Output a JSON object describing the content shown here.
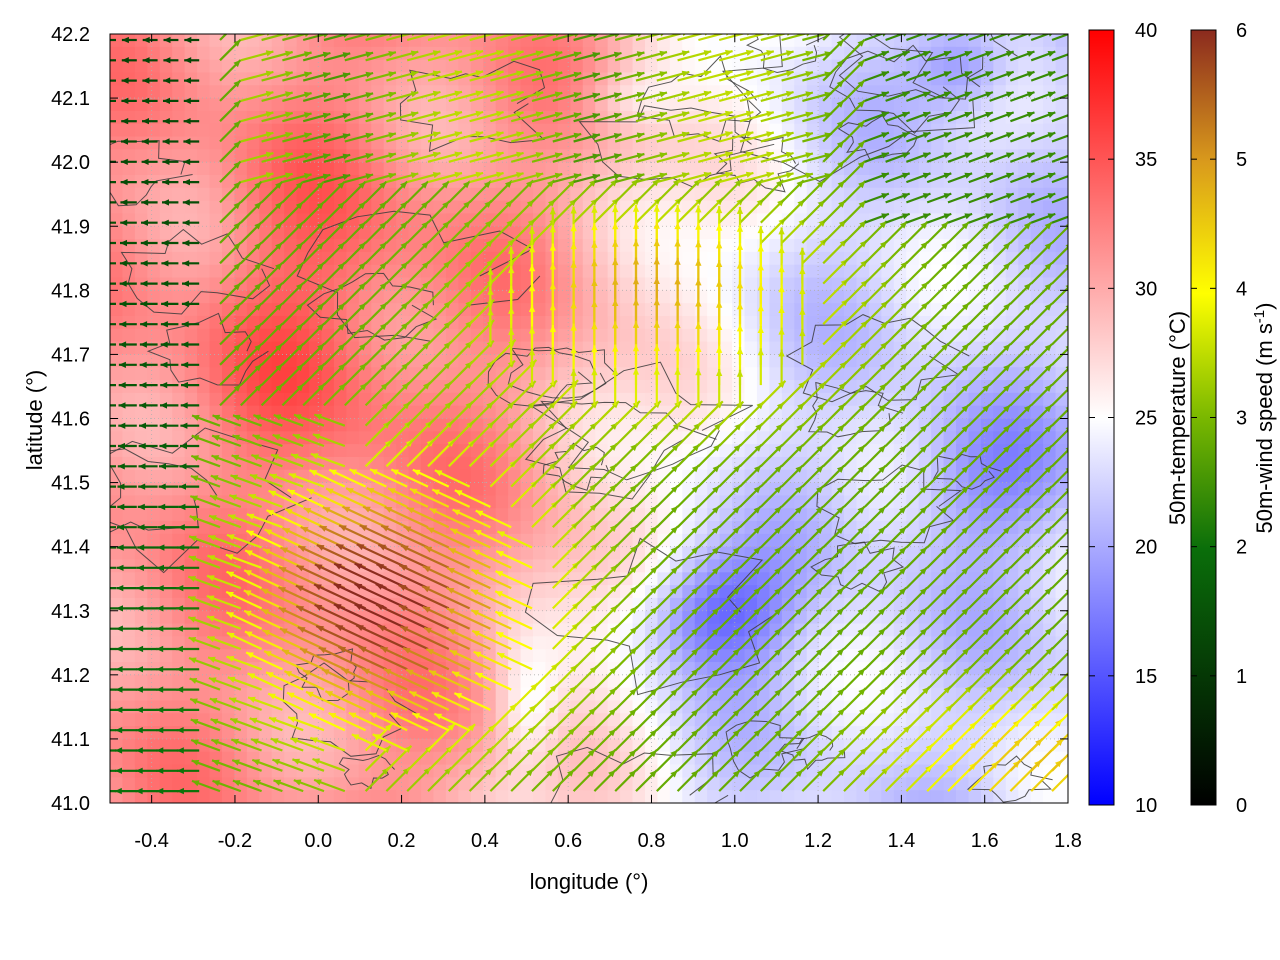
{
  "chart_data": {
    "type": "heatmap",
    "title": "",
    "xlabel": "longitude (°)",
    "ylabel": "latitude (°)",
    "xlim": [
      -0.5,
      1.8
    ],
    "ylim": [
      41.0,
      42.2
    ],
    "xticks": [
      "-0.4",
      "-0.2",
      "0.0",
      "0.2",
      "0.4",
      "0.6",
      "0.8",
      "1.0",
      "1.2",
      "1.4",
      "1.6",
      "1.8"
    ],
    "xtick_values": [
      -0.4,
      -0.2,
      0.0,
      0.2,
      0.4,
      0.6,
      0.8,
      1.0,
      1.2,
      1.4,
      1.6,
      1.8
    ],
    "yticks": [
      "41.0",
      "41.1",
      "41.2",
      "41.3",
      "41.4",
      "41.5",
      "41.6",
      "41.7",
      "41.8",
      "41.9",
      "42.0",
      "42.1",
      "42.2"
    ],
    "ytick_values": [
      41.0,
      41.1,
      41.2,
      41.3,
      41.4,
      41.5,
      41.6,
      41.7,
      41.8,
      41.9,
      42.0,
      42.1,
      42.2
    ],
    "grid": true,
    "layers": {
      "background": "50m-temperature field (heatmap, blue-white-red)",
      "contours": "terrain contour lines (dark gray)",
      "vectors": "50m-wind vectors colored by speed"
    },
    "temperature_colorbar": {
      "label": "50m-temperature (°C)",
      "range": [
        10,
        40
      ],
      "ticks": [
        "10",
        "15",
        "20",
        "25",
        "30",
        "35",
        "40"
      ],
      "tick_values": [
        10,
        15,
        20,
        25,
        30,
        35,
        40
      ],
      "colors": [
        "#0000ff",
        "#ffffff",
        "#ff0000"
      ]
    },
    "wind_colorbar": {
      "label_main": "50m-wind speed (m s",
      "label_sup": "-1",
      "label_end": ")",
      "range": [
        0,
        6
      ],
      "ticks": [
        "0",
        "1",
        "2",
        "3",
        "4",
        "5",
        "6"
      ],
      "tick_values": [
        0,
        1,
        2,
        3,
        4,
        5,
        6
      ],
      "colors": [
        "#000000",
        "#0a6e0a",
        "#ffff00",
        "#d99a1c",
        "#8b2a1e"
      ]
    },
    "temperature_regions_approx": [
      {
        "region": "west, lon -0.5 to 0.3",
        "temp_c": 32
      },
      {
        "region": "central, lon 0.3 to 0.8",
        "temp_c": 28
      },
      {
        "region": "east, lon 0.8 to 1.8",
        "temp_c": 22
      },
      {
        "region": "cold cores near lon 0.95, lat 41.3 and lon 1.55, lat 42.15",
        "temp_c": 17
      }
    ],
    "wind_regions_approx": [
      {
        "region": "west, lon < -0.25",
        "speed_ms": 1.5,
        "direction": "from east"
      },
      {
        "region": "central-south, lon 0 to 0.5, lat 41.1-41.5",
        "speed_ms": 6,
        "direction": "from southeast"
      },
      {
        "region": "central-north, lon 0.4 to 1.2, lat 41.6-41.9",
        "speed_ms": 5,
        "direction": "from south"
      },
      {
        "region": "east",
        "speed_ms": 3,
        "direction": "from southwest"
      },
      {
        "region": "southeast corner",
        "speed_ms": 4.5,
        "direction": "from southwest"
      }
    ]
  }
}
